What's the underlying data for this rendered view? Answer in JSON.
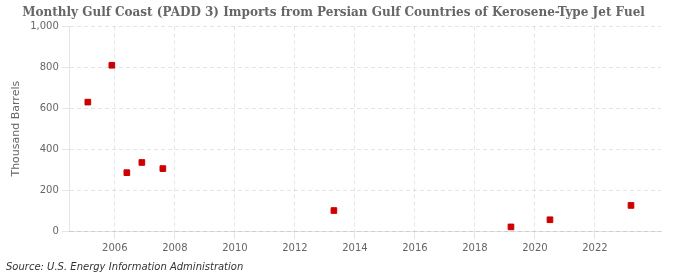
{
  "chart_data": {
    "type": "scatter",
    "title": "Monthly Gulf Coast (PADD 3) Imports from Persian Gulf Countries of Kerosene-Type Jet Fuel",
    "ylabel": "Thousand Barrels",
    "annotations": [
      "Source: U.S. Energy Information Administration"
    ],
    "x": [
      2005.1,
      2005.9,
      2006.4,
      2006.9,
      2007.6,
      2013.3,
      2019.2,
      2020.5,
      2023.2
    ],
    "values": [
      630,
      810,
      285,
      335,
      305,
      100,
      20,
      55,
      125
    ],
    "color": "#cc0000",
    "marker": "square",
    "xlim": [
      2004.5,
      2024.2
    ],
    "xticks": [
      2006,
      2008,
      2010,
      2012,
      2014,
      2016,
      2018,
      2020,
      2022
    ],
    "ylim": [
      0,
      1000
    ],
    "yticks": [
      0,
      200,
      400,
      600,
      800,
      {
        "value": 1000,
        "label": "1,000"
      }
    ],
    "grid": true
  }
}
